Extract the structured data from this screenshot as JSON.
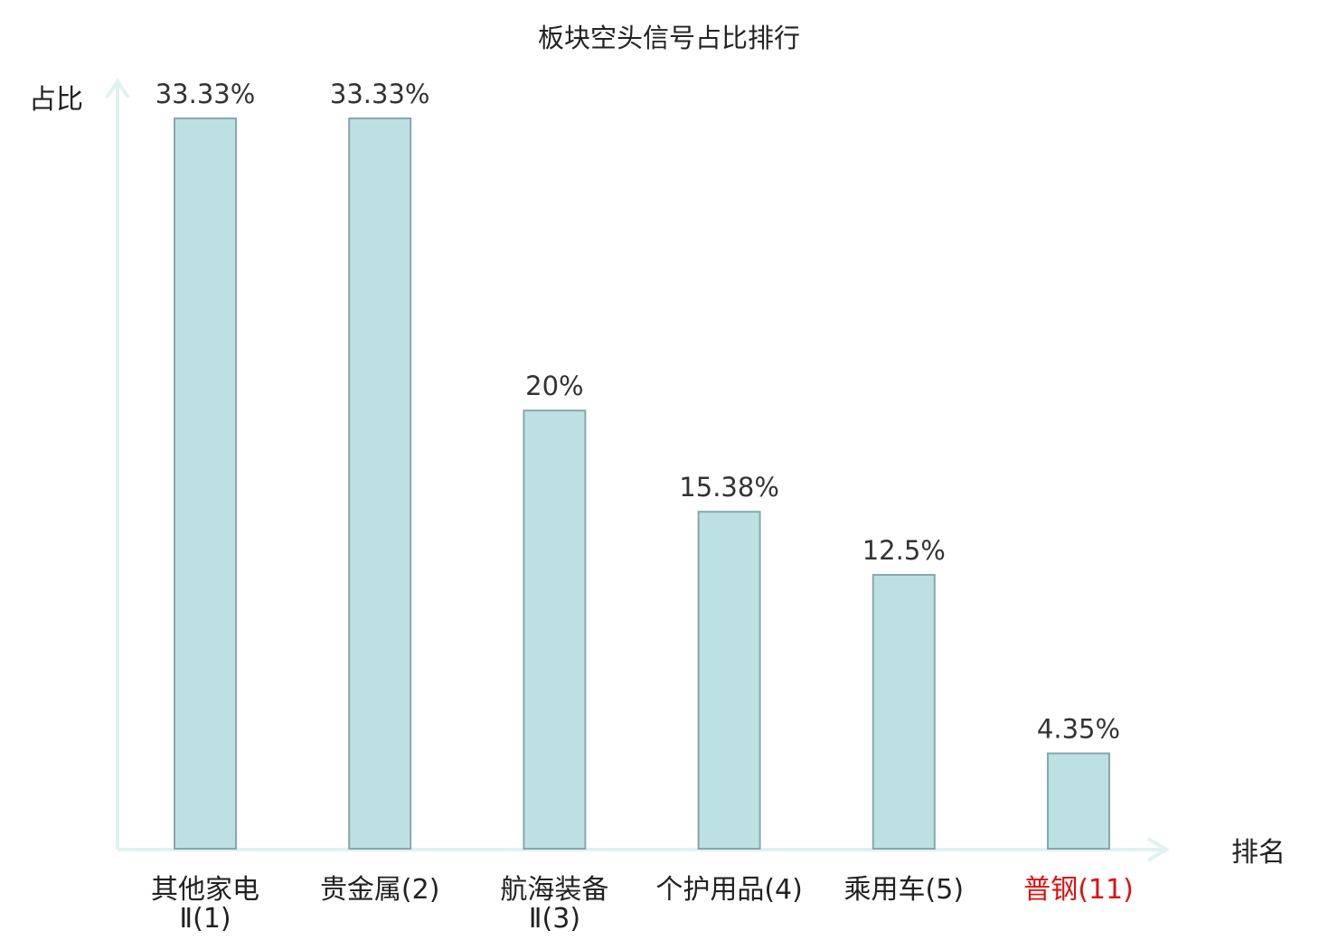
{
  "chart_data": {
    "type": "bar",
    "title": "板块空头信号占比排行",
    "ylabel": "占比",
    "xlabel": "排名",
    "ylim": [
      0,
      33.33
    ],
    "categories": [
      [
        "其他家电",
        "Ⅱ(1)"
      ],
      [
        "贵金属(2)"
      ],
      [
        "航海装备",
        "Ⅱ(3)"
      ],
      [
        "个护用品(4)"
      ],
      [
        "乘用车(5)"
      ],
      [
        "普钢(11)"
      ]
    ],
    "values": [
      33.33,
      33.33,
      20,
      15.38,
      12.5,
      4.35
    ],
    "value_labels": [
      "33.33%",
      "33.33%",
      "20%",
      "15.38%",
      "12.5%",
      "4.35%"
    ],
    "highlight_index": 5,
    "grid": false,
    "colors": {
      "bar_fill": "#bde0e3",
      "bar_stroke": "#86a8ac",
      "axis": "#e0f2f0",
      "highlight": "#e01010"
    }
  }
}
